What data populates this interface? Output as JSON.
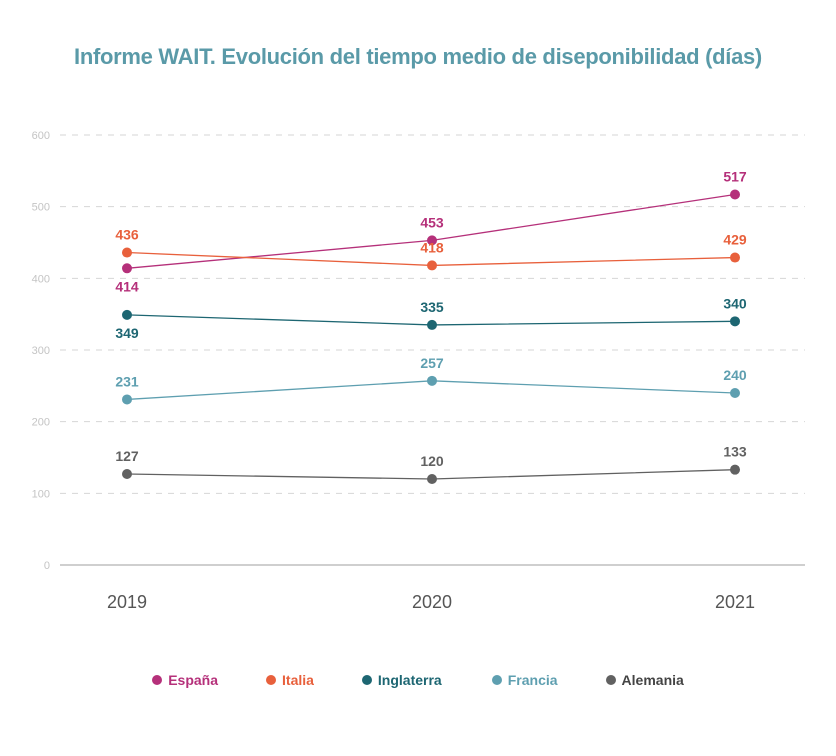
{
  "chart_data": {
    "type": "line",
    "title": "Informe WAIT. Evolución del tiempo medio de diseponibilidad (días)",
    "categories": [
      "2019",
      "2020",
      "2021"
    ],
    "y_ticks": [
      "0",
      "100",
      "200",
      "300",
      "400",
      "500",
      "600"
    ],
    "ylim": [
      0,
      600
    ],
    "grid": true,
    "legend_position": "bottom",
    "title_color": "#5a9aa8",
    "series": [
      {
        "name": "España",
        "color": "#b5307a",
        "values": [
          414,
          453,
          517
        ],
        "label_side": [
          "below",
          "above",
          "above"
        ]
      },
      {
        "name": "Italia",
        "color": "#e8603c",
        "values": [
          436,
          418,
          429
        ],
        "label_side": [
          "above",
          "above",
          "above"
        ]
      },
      {
        "name": "Inglaterra",
        "color": "#1d6672",
        "values": [
          349,
          335,
          340
        ],
        "label_side": [
          "below",
          "above",
          "above"
        ]
      },
      {
        "name": "Francia",
        "color": "#5e9fb0",
        "values": [
          231,
          257,
          240
        ],
        "label_side": [
          "above",
          "above",
          "above"
        ]
      },
      {
        "name": "Alemania",
        "color": "#616161",
        "values": [
          127,
          120,
          133
        ],
        "label_side": [
          "above",
          "above",
          "above"
        ]
      }
    ]
  }
}
